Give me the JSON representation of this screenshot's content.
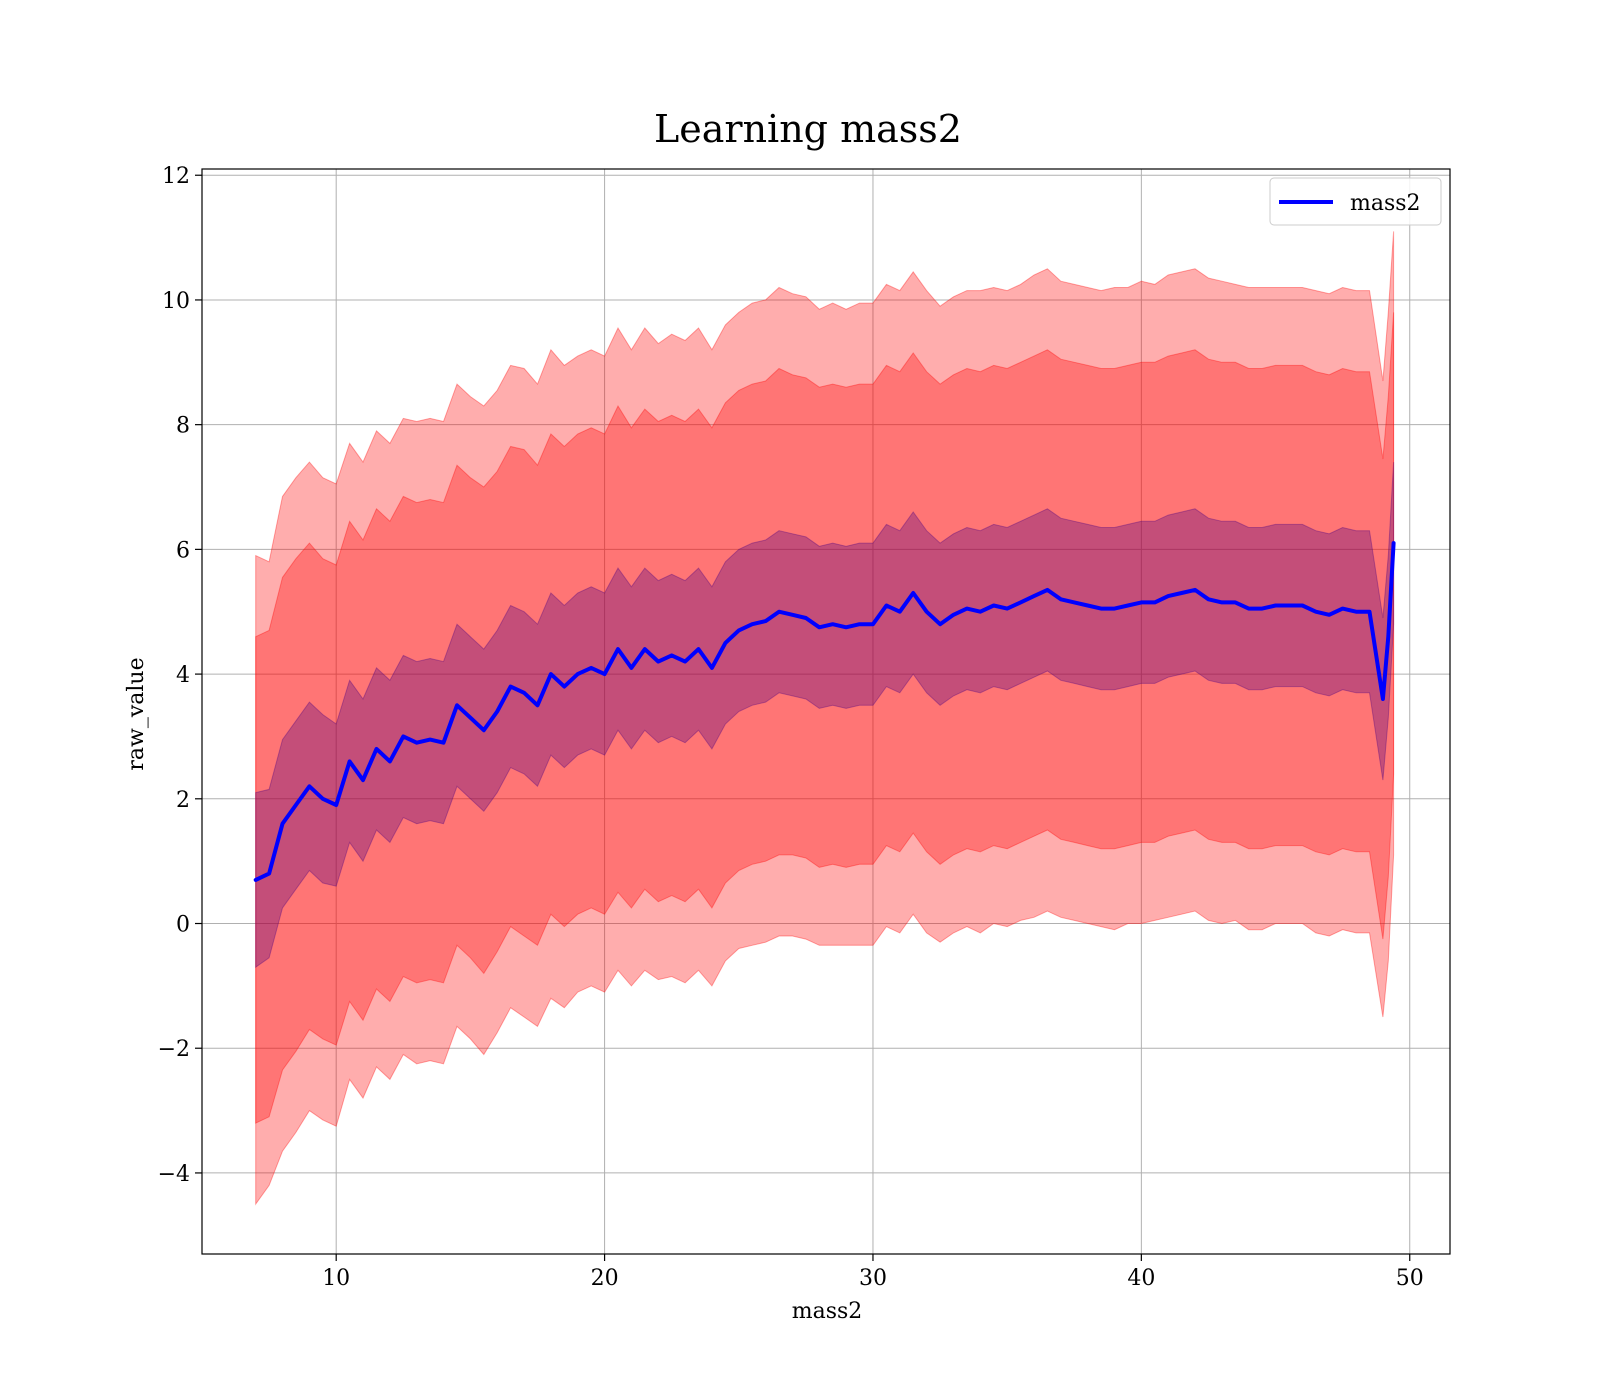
{
  "chart_data": {
    "type": "line",
    "title": "Learning mass2",
    "xlabel": "mass2",
    "ylabel": "raw_value",
    "xlim": [
      5,
      51.5
    ],
    "ylim": [
      -5.3,
      12.1
    ],
    "x_ticks": [
      10,
      20,
      30,
      40,
      50
    ],
    "y_ticks": [
      -4,
      -2,
      0,
      2,
      4,
      6,
      8,
      10,
      12
    ],
    "x_tick_labels": [
      "10",
      "20",
      "30",
      "40",
      "50"
    ],
    "y_tick_labels": [
      "−4",
      "−2",
      "0",
      "2",
      "4",
      "6",
      "8",
      "10",
      "12"
    ],
    "grid": true,
    "legend_position": "top-right",
    "series": [
      {
        "name": "mass2",
        "color": "#0000ff",
        "x": [
          7.0,
          7.5,
          8.0,
          8.5,
          9.0,
          9.5,
          10.0,
          10.5,
          11.0,
          11.5,
          12.0,
          12.5,
          13.0,
          13.5,
          14.0,
          14.5,
          15.0,
          15.5,
          16.0,
          16.5,
          17.0,
          17.5,
          18.0,
          18.5,
          19.0,
          19.5,
          20.0,
          20.5,
          21.0,
          21.5,
          22.0,
          22.5,
          23.0,
          23.5,
          24.0,
          24.5,
          25.0,
          25.5,
          26.0,
          26.5,
          27.0,
          27.5,
          28.0,
          28.5,
          29.0,
          29.5,
          30.0,
          30.5,
          31.0,
          31.5,
          32.0,
          32.5,
          33.0,
          33.5,
          34.0,
          34.5,
          35.0,
          35.5,
          36.0,
          36.5,
          37.0,
          37.5,
          38.0,
          38.5,
          39.0,
          39.5,
          40.0,
          40.5,
          41.0,
          41.5,
          42.0,
          42.5,
          43.0,
          43.5,
          44.0,
          44.5,
          45.0,
          45.5,
          46.0,
          46.5,
          47.0,
          47.5,
          48.0,
          48.5,
          49.0,
          49.2,
          49.4
        ],
        "y": [
          0.7,
          0.8,
          1.6,
          1.9,
          2.2,
          2.0,
          1.9,
          2.6,
          2.3,
          2.8,
          2.6,
          3.0,
          2.9,
          2.95,
          2.9,
          3.5,
          3.3,
          3.1,
          3.4,
          3.8,
          3.7,
          3.5,
          4.0,
          3.8,
          4.0,
          4.1,
          4.0,
          4.4,
          4.1,
          4.4,
          4.2,
          4.3,
          4.2,
          4.4,
          4.1,
          4.5,
          4.7,
          4.8,
          4.85,
          5.0,
          4.95,
          4.9,
          4.75,
          4.8,
          4.75,
          4.8,
          4.8,
          5.1,
          5.0,
          5.3,
          5.0,
          4.8,
          4.95,
          5.05,
          5.0,
          5.1,
          5.05,
          5.15,
          5.25,
          5.35,
          5.2,
          5.15,
          5.1,
          5.05,
          5.05,
          5.1,
          5.15,
          5.15,
          5.25,
          5.3,
          5.35,
          5.2,
          5.15,
          5.15,
          5.05,
          5.05,
          5.1,
          5.1,
          5.1,
          5.0,
          4.95,
          5.05,
          5.0,
          5.0,
          3.6,
          4.6,
          6.1
        ]
      }
    ],
    "bands": [
      {
        "color": "#ff0000",
        "opacity": 0.32,
        "offsets": [
          5.2,
          5.0,
          5.25,
          5.25,
          5.2,
          5.15,
          5.15,
          5.1,
          5.1,
          5.1,
          5.1,
          5.1,
          5.15,
          5.15,
          5.15,
          5.15,
          5.15,
          5.2,
          5.15,
          5.15,
          5.2,
          5.15,
          5.2,
          5.15,
          5.1,
          5.1,
          5.1,
          5.15,
          5.1,
          5.15,
          5.1,
          5.15,
          5.15,
          5.15,
          5.1,
          5.1,
          5.1,
          5.15,
          5.15,
          5.2,
          5.15,
          5.15,
          5.1,
          5.15,
          5.1,
          5.15,
          5.15,
          5.15,
          5.15,
          5.15,
          5.15,
          5.1,
          5.1,
          5.1,
          5.15,
          5.1,
          5.1,
          5.1,
          5.15,
          5.15,
          5.1,
          5.1,
          5.1,
          5.1,
          5.15,
          5.1,
          5.15,
          5.1,
          5.15,
          5.15,
          5.15,
          5.15,
          5.15,
          5.1,
          5.15,
          5.15,
          5.1,
          5.1,
          5.1,
          5.15,
          5.15,
          5.15,
          5.15,
          5.15,
          5.1,
          5.2,
          5.0
        ]
      },
      {
        "color": "#ff0000",
        "opacity": 0.32,
        "offsets": [
          3.9,
          3.9,
          3.95,
          3.95,
          3.9,
          3.85,
          3.85,
          3.85,
          3.85,
          3.85,
          3.85,
          3.85,
          3.85,
          3.85,
          3.85,
          3.85,
          3.85,
          3.9,
          3.85,
          3.85,
          3.9,
          3.85,
          3.85,
          3.85,
          3.85,
          3.85,
          3.85,
          3.9,
          3.85,
          3.85,
          3.85,
          3.85,
          3.85,
          3.85,
          3.85,
          3.85,
          3.85,
          3.85,
          3.85,
          3.9,
          3.85,
          3.85,
          3.85,
          3.85,
          3.85,
          3.85,
          3.85,
          3.85,
          3.85,
          3.85,
          3.85,
          3.85,
          3.85,
          3.85,
          3.85,
          3.85,
          3.85,
          3.85,
          3.85,
          3.85,
          3.85,
          3.85,
          3.85,
          3.85,
          3.85,
          3.85,
          3.85,
          3.85,
          3.85,
          3.85,
          3.85,
          3.85,
          3.85,
          3.85,
          3.85,
          3.85,
          3.85,
          3.85,
          3.85,
          3.85,
          3.85,
          3.85,
          3.85,
          3.85,
          3.85,
          3.85,
          3.7
        ]
      },
      {
        "color": "#4b0082",
        "opacity": 0.33,
        "offsets": [
          1.4,
          1.35,
          1.35,
          1.35,
          1.35,
          1.35,
          1.3,
          1.3,
          1.3,
          1.3,
          1.3,
          1.3,
          1.3,
          1.3,
          1.3,
          1.3,
          1.3,
          1.3,
          1.3,
          1.3,
          1.3,
          1.3,
          1.3,
          1.3,
          1.3,
          1.3,
          1.3,
          1.3,
          1.3,
          1.3,
          1.3,
          1.3,
          1.3,
          1.3,
          1.3,
          1.3,
          1.3,
          1.3,
          1.3,
          1.3,
          1.3,
          1.3,
          1.3,
          1.3,
          1.3,
          1.3,
          1.3,
          1.3,
          1.3,
          1.3,
          1.3,
          1.3,
          1.3,
          1.3,
          1.3,
          1.3,
          1.3,
          1.3,
          1.3,
          1.3,
          1.3,
          1.3,
          1.3,
          1.3,
          1.3,
          1.3,
          1.3,
          1.3,
          1.3,
          1.3,
          1.3,
          1.3,
          1.3,
          1.3,
          1.3,
          1.3,
          1.3,
          1.3,
          1.3,
          1.3,
          1.3,
          1.3,
          1.3,
          1.3,
          1.3,
          1.3,
          1.3
        ]
      }
    ]
  }
}
